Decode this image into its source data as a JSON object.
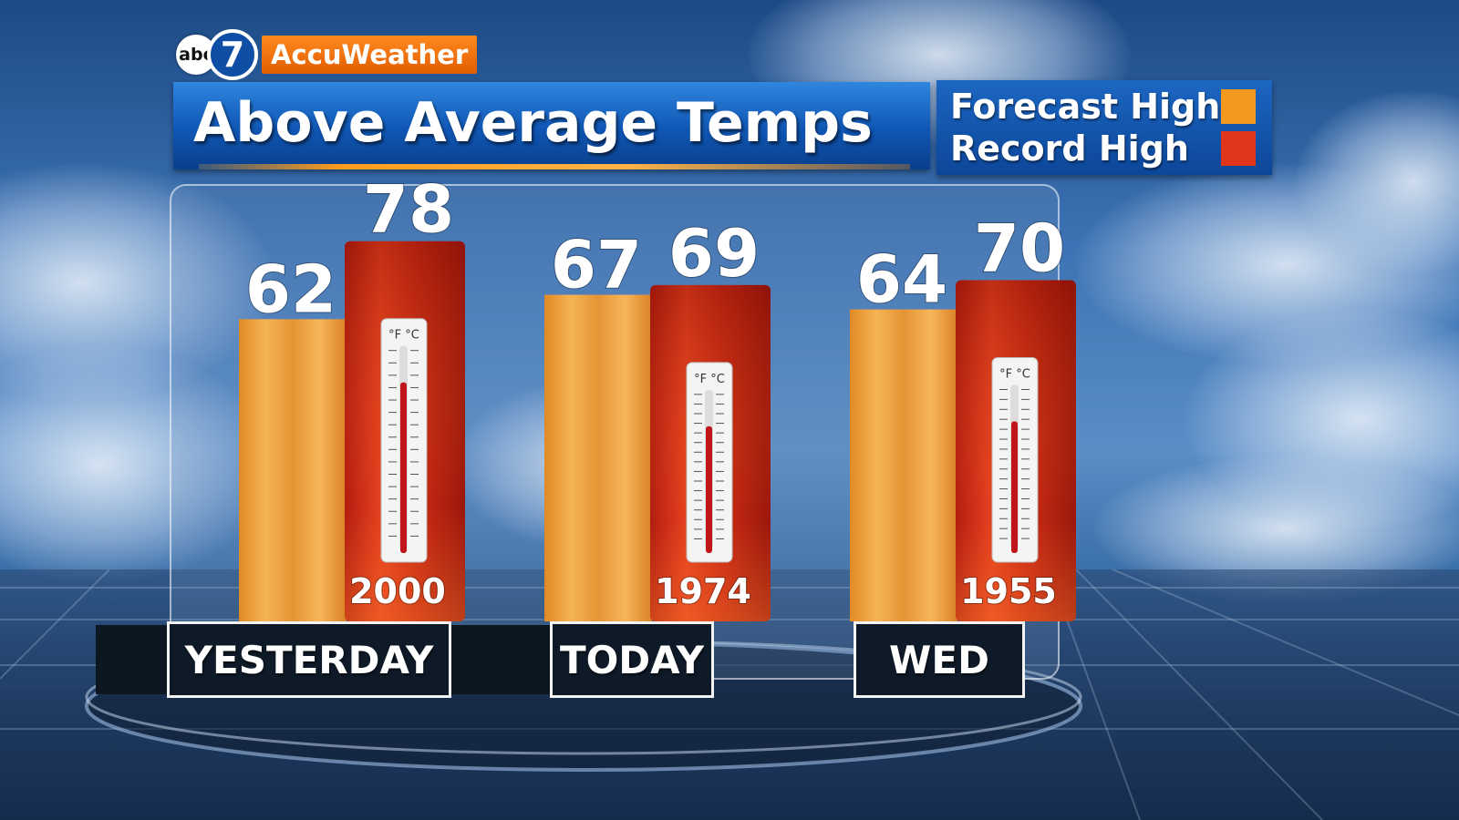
{
  "branding": {
    "network": "abc",
    "channel": "7",
    "provider": "AccuWeather"
  },
  "title": "Above Average Temps",
  "legend": [
    {
      "label": "Forecast High",
      "color": "#f39a1e"
    },
    {
      "label": "Record High",
      "color": "#e2361a"
    }
  ],
  "colors": {
    "forecast": "#f0a23a",
    "record": "#d8321a",
    "title_bar": "#0f56b4"
  },
  "chart_data": {
    "type": "bar",
    "title": "Above Average Temps",
    "categories": [
      "YESTERDAY",
      "TODAY",
      "WED"
    ],
    "series": [
      {
        "name": "Forecast High",
        "values": [
          62,
          67,
          64
        ]
      },
      {
        "name": "Record High",
        "values": [
          78,
          69,
          70
        ]
      }
    ],
    "record_years": [
      "2000",
      "1974",
      "1955"
    ],
    "ylim": [
      0,
      100
    ],
    "legend": "top-right",
    "grid": false
  }
}
